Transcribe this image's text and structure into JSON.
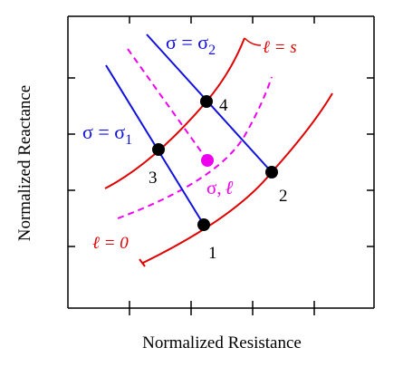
{
  "colors": {
    "ell_curve": "#e00000",
    "sigma_line": "#1010e0",
    "midpoint": "#ee00ee",
    "axis": "#000000",
    "point": "#000000"
  },
  "axes": {
    "x_title": "Normalized Resistance",
    "y_title": "Normalized Reactance"
  },
  "labels": {
    "sigma2": "σ = σ",
    "sigma2_sub": "2",
    "sigma1": "σ = σ",
    "sigma1_sub": "1",
    "ell_s": "ℓ = s",
    "ell_0": "ℓ = 0",
    "mid_sigma": "σ,",
    "mid_ell": "ℓ",
    "p1": "1",
    "p2": "2",
    "p3": "3",
    "p4": "4"
  }
}
